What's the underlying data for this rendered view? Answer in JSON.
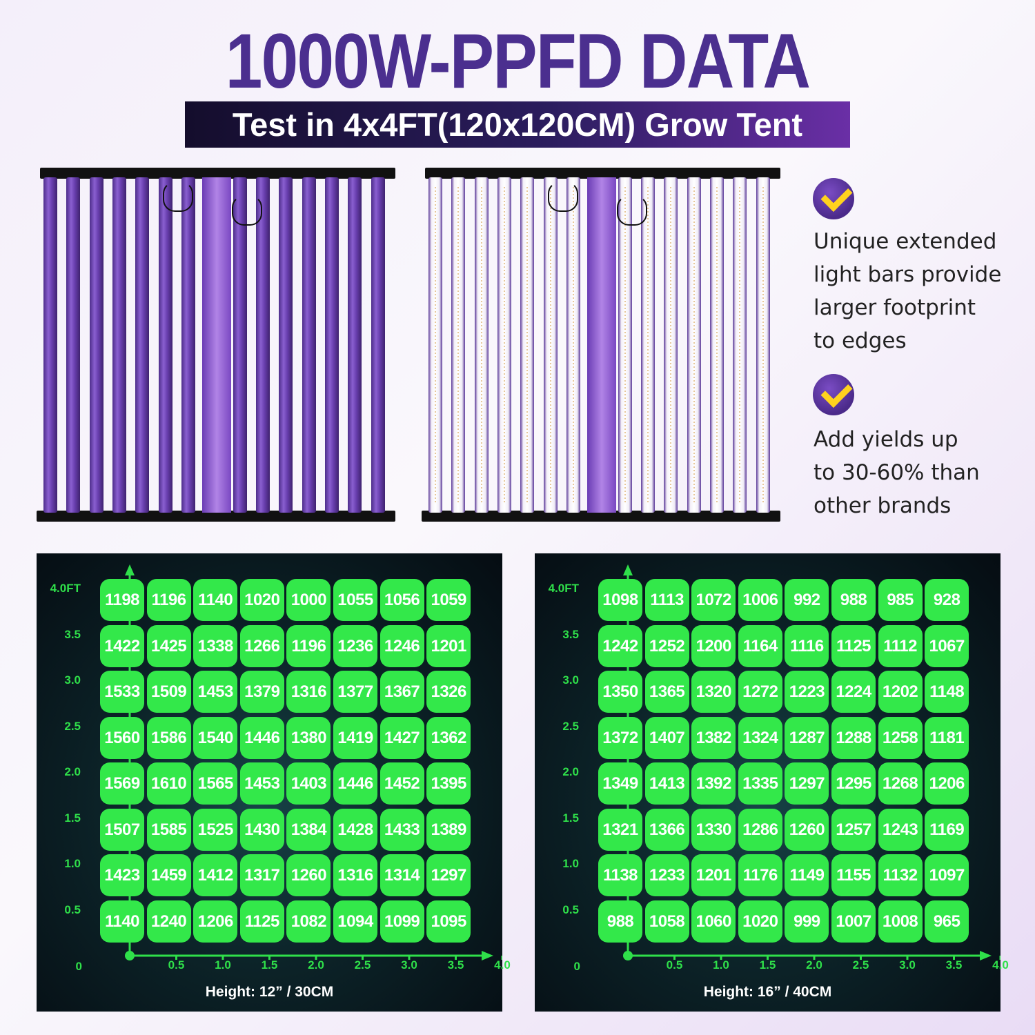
{
  "header": {
    "title": "1000W-PPFD DATA",
    "subtitle": "Test in 4x4FT(120x120CM) Grow Tent"
  },
  "features": [
    {
      "icon": "check-icon",
      "text": "Unique extended\nlight bars provide\nlarger footprint\nto edges"
    },
    {
      "icon": "check-icon",
      "text": "Add yields up\nto 30-60% than\nother brands"
    }
  ],
  "colors": {
    "title": "#4b2f8f",
    "cell": "#33e84a",
    "axis": "#2fe04a",
    "check": "#ffd21e"
  },
  "panels": [
    {
      "height_label": "Height: 12” / 30CM",
      "y_ticks": [
        "4.0FT",
        "3.5",
        "3.0",
        "2.5",
        "2.0",
        "1.5",
        "1.0",
        "0.5",
        "0"
      ],
      "x_ticks": [
        "0.5",
        "1.0",
        "1.5",
        "2.0",
        "2.5",
        "3.0",
        "3.5",
        "4.0"
      ],
      "rows": [
        [
          "1198",
          "1196",
          "1140",
          "1020",
          "1000",
          "1055",
          "1056",
          "1059"
        ],
        [
          "1422",
          "1425",
          "1338",
          "1266",
          "1196",
          "1236",
          "1246",
          "1201"
        ],
        [
          "1533",
          "1509",
          "1453",
          "1379",
          "1316",
          "1377",
          "1367",
          "1326"
        ],
        [
          "1560",
          "1586",
          "1540",
          "1446",
          "1380",
          "1419",
          "1427",
          "1362"
        ],
        [
          "1569",
          "1610",
          "1565",
          "1453",
          "1403",
          "1446",
          "1452",
          "1395"
        ],
        [
          "1507",
          "1585",
          "1525",
          "1430",
          "1384",
          "1428",
          "1433",
          "1389"
        ],
        [
          "1423",
          "1459",
          "1412",
          "1317",
          "1260",
          "1316",
          "1314",
          "1297"
        ],
        [
          "1140",
          "1240",
          "1206",
          "1125",
          "1082",
          "1094",
          "1099",
          "1095"
        ]
      ]
    },
    {
      "height_label": "Height: 16” / 40CM",
      "y_ticks": [
        "4.0FT",
        "3.5",
        "3.0",
        "2.5",
        "2.0",
        "1.5",
        "1.0",
        "0.5",
        "0"
      ],
      "x_ticks": [
        "0.5",
        "1.0",
        "1.5",
        "2.0",
        "2.5",
        "3.0",
        "3.5",
        "4.0"
      ],
      "rows": [
        [
          "1098",
          "1113",
          "1072",
          "1006",
          "992",
          "988",
          "985",
          "928"
        ],
        [
          "1242",
          "1252",
          "1200",
          "1164",
          "1116",
          "1125",
          "1112",
          "1067"
        ],
        [
          "1350",
          "1365",
          "1320",
          "1272",
          "1223",
          "1224",
          "1202",
          "1148"
        ],
        [
          "1372",
          "1407",
          "1382",
          "1324",
          "1287",
          "1288",
          "1258",
          "1181"
        ],
        [
          "1349",
          "1413",
          "1392",
          "1335",
          "1297",
          "1295",
          "1268",
          "1206"
        ],
        [
          "1321",
          "1366",
          "1330",
          "1286",
          "1260",
          "1257",
          "1243",
          "1169"
        ],
        [
          "1138",
          "1233",
          "1201",
          "1176",
          "1149",
          "1155",
          "1132",
          "1097"
        ],
        [
          "988",
          "1058",
          "1060",
          "1020",
          "999",
          "1007",
          "1008",
          "965"
        ]
      ]
    }
  ]
}
